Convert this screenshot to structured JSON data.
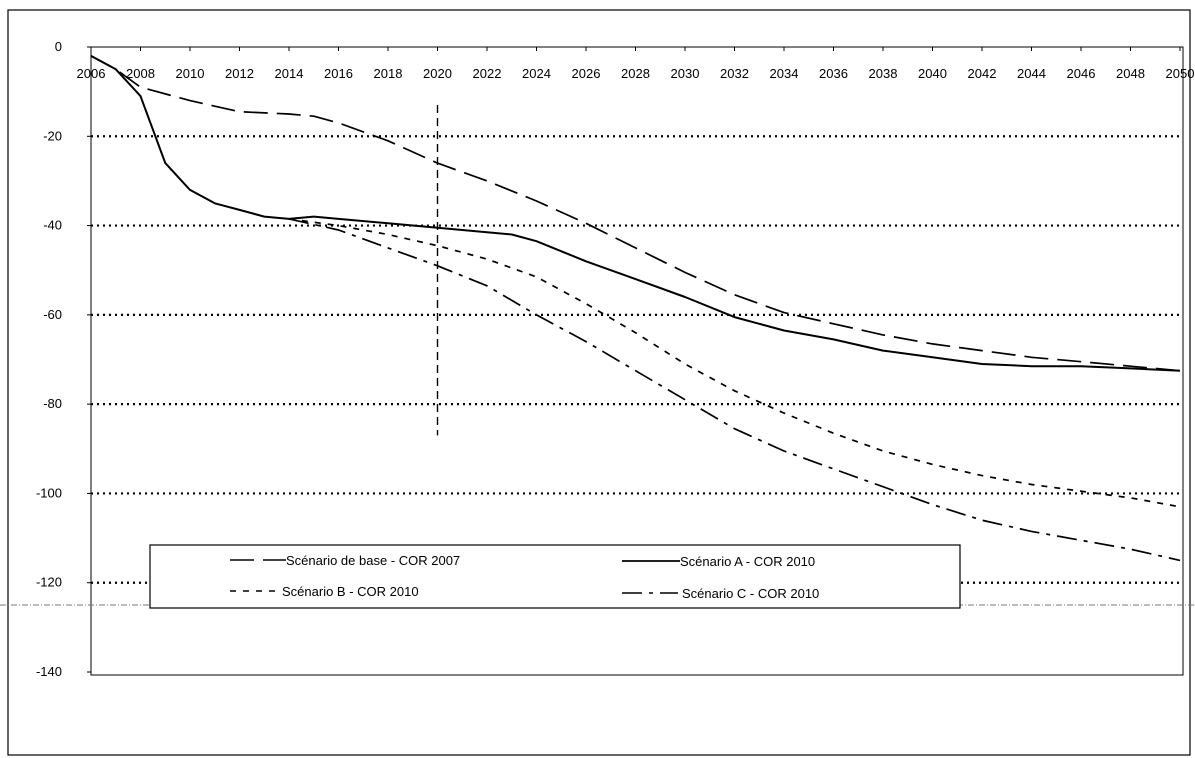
{
  "chart_data": {
    "type": "line",
    "title": "",
    "xlabel": "",
    "ylabel": "",
    "x_ticks": [
      "2006",
      "2008",
      "2010",
      "2012",
      "2014",
      "2016",
      "2018",
      "2020",
      "2022",
      "2024",
      "2026",
      "2028",
      "2030",
      "2032",
      "2034",
      "2036",
      "2038",
      "2040",
      "2042",
      "2044",
      "2046",
      "2048",
      "2050"
    ],
    "y_ticks": [
      "0",
      "-20",
      "-40",
      "-60",
      "-80",
      "-100",
      "-120",
      "-140"
    ],
    "xlim": [
      2006,
      2050
    ],
    "ylim": [
      -140,
      0
    ],
    "grid": "horizontal dotted",
    "reference_line_x": 2020,
    "legend_position": "bottom-inside",
    "colors": {
      "line": "#000000",
      "grid": "#000000",
      "background": "#ffffff"
    },
    "series": [
      {
        "name": "Scénario de base - COR 2007",
        "dash": "long-dash",
        "x": [
          2006,
          2007,
          2008,
          2010,
          2012,
          2014,
          2015,
          2016,
          2018,
          2020,
          2022,
          2024,
          2026,
          2028,
          2030,
          2032,
          2034,
          2036,
          2038,
          2040,
          2042,
          2044,
          2046,
          2048,
          2050
        ],
        "y": [
          -2,
          -5,
          -9,
          -12,
          -14.5,
          -15,
          -15.5,
          -17,
          -21,
          -26,
          -30,
          -34.5,
          -39.5,
          -45,
          -50.5,
          -55.5,
          -59.5,
          -62,
          -64.5,
          -66.5,
          -68,
          -69.5,
          -70.5,
          -71.5,
          -72.5
        ]
      },
      {
        "name": "Scénario A - COR 2010",
        "dash": "solid",
        "x": [
          2006,
          2007,
          2008,
          2009,
          2010,
          2011,
          2012,
          2013,
          2014,
          2015,
          2016,
          2018,
          2020,
          2022,
          2023,
          2024,
          2026,
          2028,
          2030,
          2032,
          2033,
          2034,
          2036,
          2038,
          2040,
          2042,
          2044,
          2046,
          2048,
          2050
        ],
        "y": [
          -2,
          -5,
          -11,
          -26,
          -32,
          -35,
          -36.5,
          -38,
          -38.5,
          -38,
          -38.5,
          -39.5,
          -40.5,
          -41.5,
          -42,
          -43.5,
          -48,
          -52,
          -56,
          -60.5,
          -62,
          -63.5,
          -65.5,
          -68,
          -69.5,
          -71,
          -71.5,
          -71.5,
          -72,
          -72.5
        ]
      },
      {
        "name": "Scénario B - COR 2010",
        "dash": "short-dash",
        "x": [
          2014,
          2016,
          2018,
          2020,
          2022,
          2024,
          2026,
          2028,
          2030,
          2032,
          2034,
          2036,
          2038,
          2040,
          2042,
          2044,
          2046,
          2048,
          2050
        ],
        "y": [
          -38.5,
          -40,
          -42,
          -44.5,
          -47.5,
          -51.5,
          -57.5,
          -64,
          -71,
          -77,
          -82,
          -86.5,
          -90.5,
          -93.5,
          -96,
          -98,
          -99.5,
          -101,
          -103
        ]
      },
      {
        "name": "Scénario C - COR 2010",
        "dash": "dash-dot",
        "x": [
          2014,
          2016,
          2018,
          2020,
          2022,
          2024,
          2026,
          2028,
          2030,
          2032,
          2034,
          2036,
          2038,
          2040,
          2042,
          2044,
          2046,
          2048,
          2050
        ],
        "y": [
          -38.5,
          -41,
          -45,
          -49,
          -53.5,
          -60,
          -66,
          -72.5,
          -79,
          -85.5,
          -90.5,
          -94.5,
          -98.5,
          -102.5,
          -106,
          -108.5,
          -110.5,
          -112.5,
          -115
        ]
      }
    ]
  }
}
